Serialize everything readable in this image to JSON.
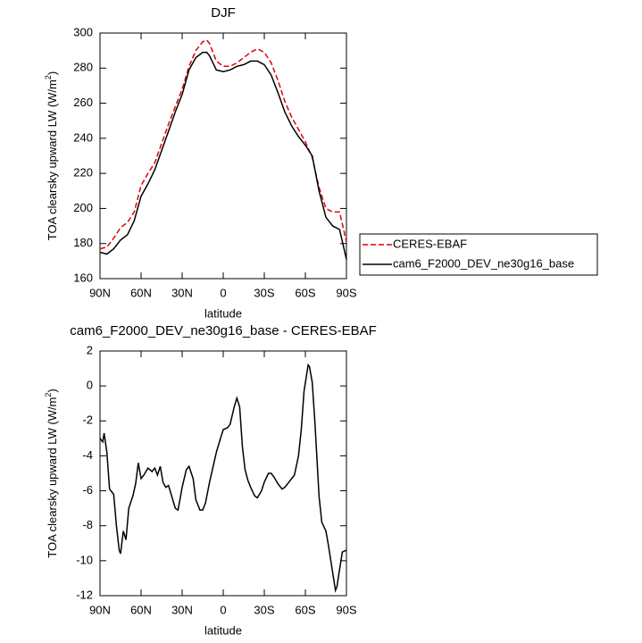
{
  "chart_data": [
    {
      "type": "line",
      "title": "DJF",
      "ylabel": "TOA clearsky upward LW (W/m²)",
      "xlabel": "latitude",
      "xlim": [
        90,
        -90
      ],
      "ylim": [
        160,
        300
      ],
      "xticks": [
        {
          "value": 90,
          "label": "90N"
        },
        {
          "value": 60,
          "label": "60N"
        },
        {
          "value": 30,
          "label": "30N"
        },
        0,
        {
          "value": -30,
          "label": "30S"
        },
        {
          "value": -60,
          "label": "60S"
        },
        {
          "value": -90,
          "label": "90S"
        }
      ],
      "yticks": [
        160,
        180,
        200,
        220,
        240,
        260,
        280,
        300
      ],
      "legend": "right",
      "x": [
        90,
        85,
        80,
        75,
        70,
        65,
        60,
        55,
        50,
        45,
        40,
        35,
        30,
        25,
        20,
        15,
        12,
        10,
        5,
        0,
        -5,
        -10,
        -15,
        -20,
        -25,
        -30,
        -35,
        -40,
        -45,
        -50,
        -55,
        -60,
        -65,
        -70,
        -75,
        -80,
        -85,
        -90
      ],
      "series": [
        {
          "name": "CERES-EBAF",
          "color": "#e00000",
          "linestyle": "dashed",
          "values": [
            177,
            178,
            183,
            189,
            192,
            198,
            213,
            220,
            226,
            237,
            248,
            258,
            268,
            281,
            290,
            295,
            296,
            294,
            284,
            281,
            281,
            283,
            286,
            289,
            291,
            289,
            283,
            273,
            261,
            252,
            245,
            238,
            229,
            212,
            200,
            198,
            198,
            181
          ]
        },
        {
          "name": "cam6_F2000_DEV_ne30g16_base",
          "color": "#000000",
          "linestyle": "solid",
          "values": [
            175,
            174,
            177,
            182,
            185,
            193,
            207,
            214,
            222,
            233,
            244,
            255,
            265,
            279,
            286,
            289,
            289,
            287,
            279,
            278,
            279,
            281,
            282,
            284,
            284,
            282,
            276,
            266,
            255,
            247,
            241,
            236,
            230,
            210,
            195,
            190,
            188,
            171
          ]
        }
      ]
    },
    {
      "type": "line",
      "title": "cam6_F2000_DEV_ne30g16_base - CERES-EBAF",
      "ylabel": "TOA clearsky upward LW (W/m²)",
      "xlabel": "latitude",
      "xlim": [
        90,
        -90
      ],
      "ylim": [
        -12,
        2
      ],
      "xticks": [
        {
          "value": 90,
          "label": "90N"
        },
        {
          "value": 60,
          "label": "60N"
        },
        {
          "value": 30,
          "label": "30N"
        },
        0,
        {
          "value": -30,
          "label": "30S"
        },
        {
          "value": -60,
          "label": "60S"
        },
        {
          "value": -90,
          "label": "90S"
        }
      ],
      "yticks": [
        -12,
        -10,
        -8,
        -6,
        -4,
        -2,
        0,
        2
      ],
      "x": [
        90,
        88,
        87,
        85,
        83,
        80,
        78,
        76,
        75,
        73,
        71,
        69,
        66,
        64,
        62,
        60,
        58,
        55,
        52,
        50,
        48,
        46,
        44,
        42,
        40,
        38,
        35,
        33,
        30,
        27,
        25,
        22,
        20,
        17,
        15,
        13,
        10,
        5,
        2,
        0,
        -3,
        -5,
        -8,
        -10,
        -12,
        -14,
        -16,
        -18,
        -20,
        -23,
        -25,
        -28,
        -30,
        -33,
        -35,
        -37,
        -40,
        -43,
        -45,
        -48,
        -50,
        -52,
        -55,
        -57,
        -59,
        -62,
        -63,
        -65,
        -67,
        -70,
        -72,
        -75,
        -77,
        -79,
        -82,
        -83,
        -85,
        -87,
        -90
      ],
      "series": [
        {
          "color": "#000000",
          "linestyle": "solid",
          "values": [
            -3,
            -3.2,
            -2.7,
            -3.8,
            -5.9,
            -6.2,
            -8,
            -9.4,
            -9.6,
            -8.3,
            -8.8,
            -7,
            -6.3,
            -5.6,
            -4.4,
            -5.3,
            -5.1,
            -4.7,
            -4.9,
            -4.7,
            -5.1,
            -4.6,
            -5.5,
            -5.8,
            -5.7,
            -6.2,
            -7,
            -7.1,
            -5.8,
            -4.8,
            -4.6,
            -5.3,
            -6.5,
            -7.1,
            -7.1,
            -6.7,
            -5.5,
            -3.8,
            -3,
            -2.5,
            -2.4,
            -2.2,
            -1.2,
            -0.7,
            -1.2,
            -3.5,
            -4.8,
            -5.4,
            -5.8,
            -6.3,
            -6.4,
            -6.0,
            -5.5,
            -5.0,
            -5.0,
            -5.2,
            -5.6,
            -5.9,
            -5.8,
            -5.5,
            -5.3,
            -5.1,
            -4.0,
            -2.5,
            -0.3,
            1.2,
            1.1,
            0.2,
            -2.1,
            -6.3,
            -7.8,
            -8.3,
            -9.2,
            -10.2,
            -11.7,
            -11.5,
            -10.5,
            -9.5,
            -9.4
          ]
        }
      ]
    }
  ]
}
